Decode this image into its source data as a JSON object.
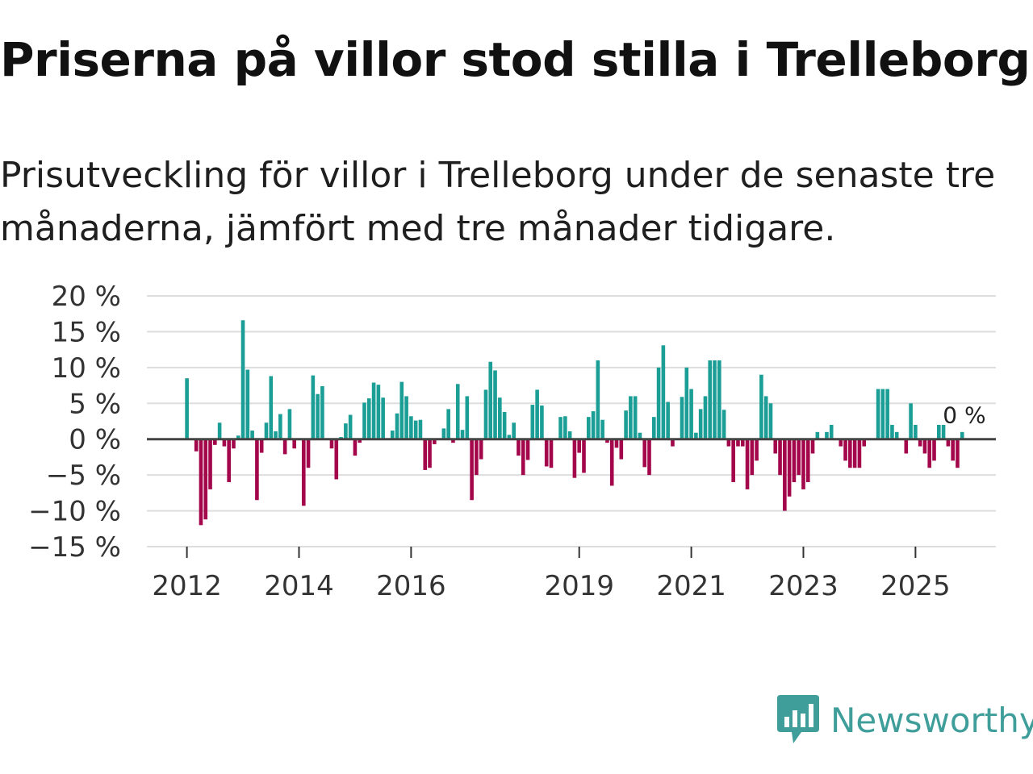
{
  "header": {
    "title": "Priserna på villor stod stilla i Trelleborg",
    "subtitle": "Prisutveckling för villor i Trelleborg under de senaste tre månaderna, jämfört med tre månader tidigare."
  },
  "branding": {
    "name": "Newsworthy",
    "icon": "newsworthy-logo-icon",
    "color": "#3f9e9a"
  },
  "colors": {
    "positive": "#1a9e96",
    "negative": "#a3064a",
    "zero_line": "#444444",
    "grid": "#dddddd"
  },
  "chart_data": {
    "type": "bar",
    "title": "Priserna på villor stod stilla i Trelleborg",
    "xlabel": "",
    "ylabel": "",
    "ylim": [
      -15,
      20
    ],
    "yticks": [
      20,
      15,
      10,
      5,
      0,
      -5,
      -10,
      -15
    ],
    "ytick_labels": [
      "20 %",
      "15 %",
      "10 %",
      "5 %",
      "0 %",
      "−5 %",
      "−10 %",
      "−15 %"
    ],
    "xtick_labels": [
      "2012",
      "2014",
      "2016",
      "2019",
      "2021",
      "2023",
      "2025"
    ],
    "xtick_years": [
      2012,
      2014,
      2016,
      2019,
      2021,
      2023,
      2025
    ],
    "start_year": 2012,
    "grid": true,
    "annotation": {
      "text": "0 %",
      "value": 0
    },
    "values": [
      8.5,
      0,
      -1.7,
      -12,
      -11.2,
      -7,
      -0.8,
      2.3,
      -1,
      -6,
      -1.3,
      0.5,
      16.6,
      9.7,
      1.2,
      -8.5,
      -1.9,
      2.3,
      8.8,
      1.1,
      3.5,
      -2.1,
      4.2,
      -1.3,
      0,
      -9.3,
      -4,
      8.9,
      6.3,
      7.4,
      0,
      -1.3,
      -5.6,
      0.3,
      2.2,
      3.4,
      -2.3,
      -0.5,
      5.1,
      5.7,
      7.9,
      7.6,
      5.8,
      0,
      1.2,
      3.6,
      8,
      6,
      3.2,
      2.6,
      2.7,
      -4.3,
      -4,
      -0.7,
      0,
      1.5,
      4.2,
      -0.5,
      7.7,
      1.3,
      6,
      -8.5,
      -5,
      -2.8,
      6.9,
      10.8,
      9.6,
      5.8,
      3.8,
      0.6,
      2.3,
      -2.3,
      -5,
      -2.9,
      4.8,
      6.9,
      4.7,
      -3.8,
      -4,
      0,
      3.1,
      3.2,
      1.1,
      -5.4,
      -1.9,
      -4.7,
      3.1,
      3.9,
      11,
      2.7,
      -0.5,
      -6.5,
      -1.2,
      -2.8,
      4,
      6,
      6,
      0.9,
      -3.9,
      -5,
      3.1,
      10,
      13.1,
      5.2,
      -1,
      0,
      5.9,
      10,
      7,
      0.9,
      4.2,
      6,
      11,
      11,
      11,
      4.1,
      -1,
      -6,
      -1,
      -1,
      -7,
      -5,
      -3,
      9,
      6,
      5,
      -2,
      -5,
      -10,
      -8,
      -6,
      -5,
      -7,
      -6,
      -2,
      1,
      0,
      1,
      2,
      0,
      -1,
      -3,
      -4,
      -4,
      -4,
      -1,
      0,
      0,
      7,
      7,
      7,
      2,
      1,
      0,
      -2,
      5,
      2,
      -1,
      -2,
      -4,
      -3,
      2,
      2,
      -1,
      -3,
      -4,
      1
    ]
  }
}
